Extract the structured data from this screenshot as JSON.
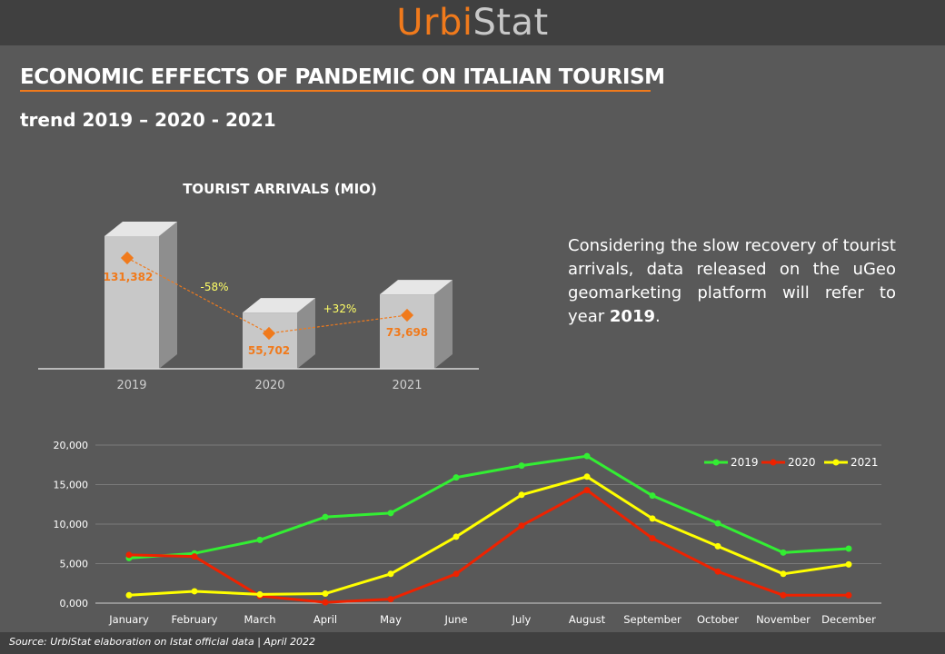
{
  "header": {
    "logo_part1": "Urbi",
    "logo_part2": "Stat"
  },
  "title": "ECONOMIC EFFECTS OF PANDEMIC ON ITALIAN TOURISM",
  "subtitle": "trend 2019 – 2020 - 2021",
  "note": {
    "text_before": "Considering the slow recovery of tourist arrivals, data released on the uGeo geomarketing platform will refer to year ",
    "bold": "2019",
    "text_after": "."
  },
  "footer": "Source: UrbiStat elaboration on Istat official data | April 2022",
  "colors": {
    "accent": "#f07a1c",
    "green": "#33ee33",
    "red": "#ee2200",
    "yellow": "#ffff00"
  },
  "chart_data": [
    {
      "type": "bar",
      "title": "TOURIST ARRIVALS (MIO)",
      "categories": [
        "2019",
        "2020",
        "2021"
      ],
      "values": [
        131382,
        55702,
        73698
      ],
      "value_labels": [
        "131,382",
        "55,702",
        "73,698"
      ],
      "changes": [
        "-58%",
        "+32%"
      ],
      "xlabel": "",
      "ylabel": ""
    },
    {
      "type": "line",
      "categories": [
        "January",
        "February",
        "March",
        "April",
        "May",
        "June",
        "July",
        "August",
        "September",
        "October",
        "November",
        "December"
      ],
      "ylim": [
        0,
        20000
      ],
      "yticks": [
        "0,000",
        "5,000",
        "10,000",
        "15,000",
        "20,000"
      ],
      "grid": true,
      "legend": "top-right",
      "series": [
        {
          "name": "2019",
          "color": "#33ee33",
          "values": [
            5700,
            6300,
            8000,
            10900,
            11400,
            15900,
            17400,
            18600,
            13600,
            10100,
            6400,
            6900
          ]
        },
        {
          "name": "2020",
          "color": "#ee2200",
          "values": [
            6100,
            5900,
            900,
            100,
            500,
            3700,
            9800,
            14300,
            8200,
            4000,
            1000,
            1000
          ]
        },
        {
          "name": "2021",
          "color": "#ffff00",
          "values": [
            1000,
            1500,
            1100,
            1200,
            3700,
            8400,
            13700,
            16000,
            10700,
            7200,
            3700,
            4900
          ]
        }
      ]
    }
  ]
}
